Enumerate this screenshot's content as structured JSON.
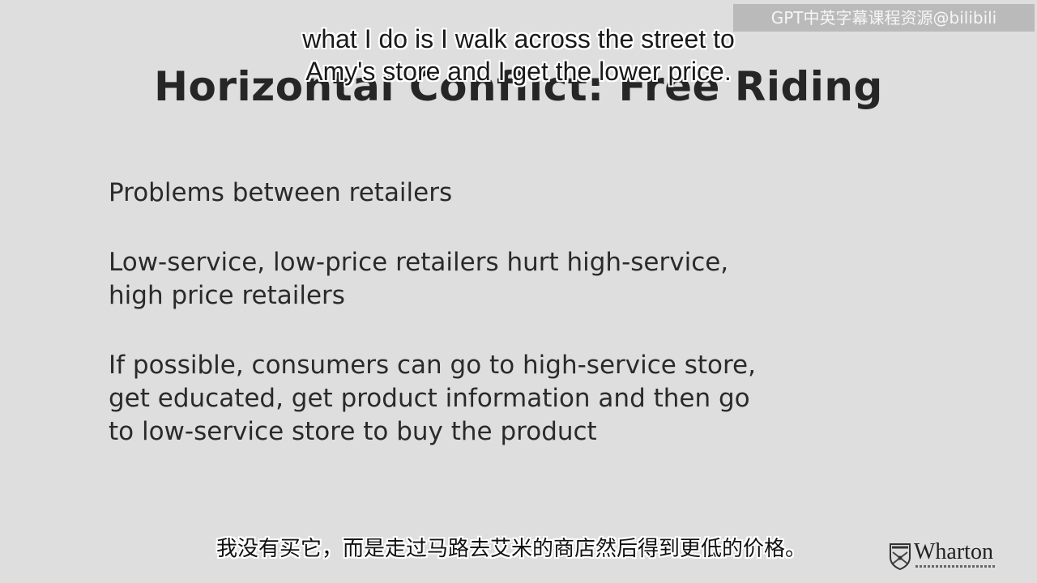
{
  "watermark": "GPT中英字幕课程资源@bilibili",
  "slide": {
    "title": "Horizontal Conflict: Free Riding",
    "bullets": [
      {
        "lines": [
          "Problems between retailers"
        ]
      },
      {
        "lines": [
          "Low-service, low-price retailers hurt high-service,",
          "high price retailers"
        ]
      },
      {
        "lines": [
          "If possible, consumers can go to high-service store,",
          "get educated, get product information and then go",
          "to low-service store to buy the product"
        ]
      }
    ]
  },
  "subtitles": {
    "en_line1": "what I do is I walk across the street to",
    "en_line2": "Amy's store and I get the lower price.",
    "zh": "我没有买它，而是走过马路去艾米的商店然后得到更低的价格。"
  },
  "logo": {
    "text": "Wharton",
    "icon": "wharton-shield-icon"
  }
}
